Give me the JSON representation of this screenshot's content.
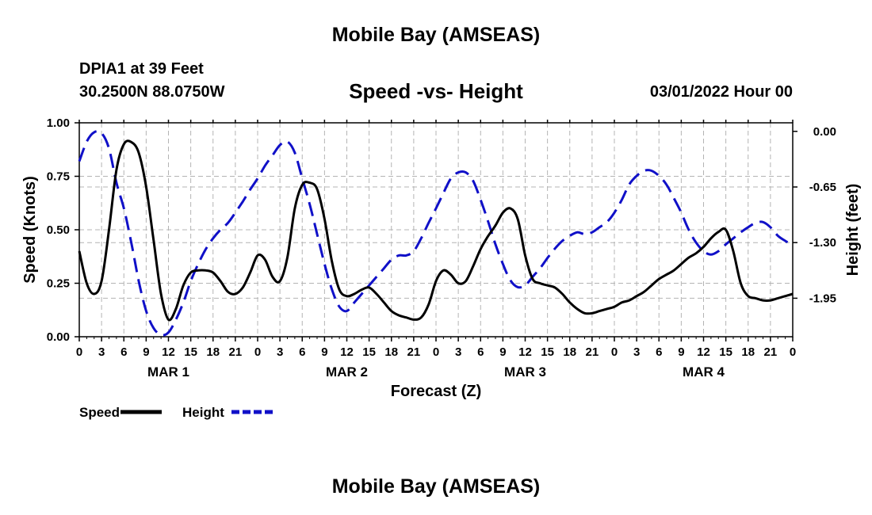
{
  "page": {
    "title": "Mobile Bay (AMSEAS)",
    "station": "DPIA1 at 39 Feet",
    "coords": "30.2500N  88.0750W",
    "plot_title": "Speed -vs- Height",
    "datetime": "03/01/2022 Hour 00",
    "bottom_title": "Mobile Bay (AMSEAS)"
  },
  "chart_data": {
    "type": "line",
    "title": "Speed -vs- Height",
    "xlabel": "Forecast (Z)",
    "ylabel": "Speed (Knots)",
    "y2label": "Height (feet)",
    "x_range_hours": [
      0,
      96
    ],
    "ylim": [
      0,
      1.0
    ],
    "y2lim": [
      -2.4,
      0.1
    ],
    "x_ticks": [
      0,
      3,
      6,
      9,
      12,
      15,
      18,
      21,
      24,
      27,
      30,
      33,
      36,
      39,
      42,
      45,
      48,
      51,
      54,
      57,
      60,
      63,
      66,
      69,
      72,
      75,
      78,
      81,
      84,
      87,
      90,
      93,
      96
    ],
    "x_tick_labels": [
      "0",
      "3",
      "6",
      "9",
      "12",
      "15",
      "18",
      "21",
      "0",
      "3",
      "6",
      "9",
      "12",
      "15",
      "18",
      "21",
      "0",
      "3",
      "6",
      "9",
      "12",
      "15",
      "18",
      "21",
      "0",
      "3",
      "6",
      "9",
      "12",
      "15",
      "18",
      "21",
      "0"
    ],
    "day_labels": [
      {
        "hour": 12,
        "label": "MAR 1"
      },
      {
        "hour": 36,
        "label": "MAR 2"
      },
      {
        "hour": 60,
        "label": "MAR 3"
      },
      {
        "hour": 84,
        "label": "MAR 4"
      }
    ],
    "y_ticks": [
      0.0,
      0.25,
      0.5,
      0.75,
      1.0
    ],
    "y_tick_labels": [
      "0.00",
      "0.25",
      "0.50",
      "0.75",
      "1.00"
    ],
    "y2_ticks": [
      0.0,
      -0.65,
      -1.3,
      -1.95
    ],
    "y2_tick_labels": [
      "0.00",
      "-0.65",
      "-1.30",
      "-1.95"
    ],
    "legend": [
      {
        "label": "Speed",
        "color": "#000000",
        "dashed": false
      },
      {
        "label": "Height",
        "color": "#1010c8",
        "dashed": true
      }
    ],
    "series": [
      {
        "name": "Speed",
        "axis": "left",
        "color": "#000000",
        "x": [
          0,
          1,
          2,
          3,
          4,
          5,
          6,
          7,
          8,
          9,
          10,
          11,
          12,
          13,
          14,
          15,
          16,
          17,
          18,
          19,
          20,
          21,
          22,
          23,
          24,
          25,
          26,
          27,
          28,
          29,
          30,
          31,
          32,
          33,
          34,
          35,
          36,
          37,
          38,
          39,
          40,
          41,
          42,
          43,
          44,
          45,
          46,
          47,
          48,
          49,
          50,
          51,
          52,
          53,
          54,
          55,
          56,
          57,
          58,
          59,
          60,
          61,
          62,
          63,
          64,
          65,
          66,
          67,
          68,
          69,
          70,
          71,
          72,
          73,
          74,
          75,
          76,
          77,
          78,
          79,
          80,
          81,
          82,
          83,
          84,
          85,
          86,
          87,
          88,
          89,
          90,
          91,
          92,
          93,
          94,
          95,
          96
        ],
        "values": [
          0.4,
          0.25,
          0.2,
          0.26,
          0.5,
          0.78,
          0.9,
          0.91,
          0.86,
          0.7,
          0.45,
          0.2,
          0.08,
          0.13,
          0.24,
          0.3,
          0.31,
          0.31,
          0.3,
          0.26,
          0.21,
          0.2,
          0.23,
          0.3,
          0.38,
          0.36,
          0.28,
          0.26,
          0.37,
          0.6,
          0.71,
          0.72,
          0.69,
          0.55,
          0.35,
          0.22,
          0.19,
          0.2,
          0.22,
          0.23,
          0.2,
          0.16,
          0.12,
          0.1,
          0.09,
          0.08,
          0.09,
          0.15,
          0.26,
          0.31,
          0.29,
          0.25,
          0.26,
          0.33,
          0.41,
          0.47,
          0.52,
          0.58,
          0.6,
          0.55,
          0.38,
          0.27,
          0.25,
          0.24,
          0.23,
          0.2,
          0.16,
          0.13,
          0.11,
          0.11,
          0.12,
          0.13,
          0.14,
          0.16,
          0.17,
          0.19,
          0.21,
          0.24,
          0.27,
          0.29,
          0.31,
          0.34,
          0.37,
          0.39,
          0.42,
          0.46,
          0.49,
          0.5,
          0.4,
          0.25,
          0.19,
          0.18,
          0.17,
          0.17,
          0.18,
          0.19,
          0.2
        ]
      },
      {
        "name": "Height",
        "axis": "right",
        "color": "#1010c8",
        "x": [
          0,
          1,
          2,
          3,
          4,
          5,
          6,
          7,
          8,
          9,
          10,
          11,
          12,
          13,
          14,
          15,
          16,
          17,
          18,
          19,
          20,
          21,
          22,
          23,
          24,
          25,
          26,
          27,
          28,
          29,
          30,
          31,
          32,
          33,
          34,
          35,
          36,
          37,
          38,
          39,
          40,
          41,
          42,
          43,
          44,
          45,
          46,
          47,
          48,
          49,
          50,
          51,
          52,
          53,
          54,
          55,
          56,
          57,
          58,
          59,
          60,
          61,
          62,
          63,
          64,
          65,
          66,
          67,
          68,
          69,
          70,
          71,
          72,
          73,
          74,
          75,
          76,
          77,
          78,
          79,
          80,
          81,
          82,
          83,
          84,
          85,
          86,
          87,
          88,
          89,
          90,
          91,
          92,
          93,
          94,
          95,
          96
        ],
        "values": [
          -0.35,
          -0.12,
          -0.01,
          -0.02,
          -0.2,
          -0.6,
          -0.9,
          -1.3,
          -1.75,
          -2.1,
          -2.3,
          -2.38,
          -2.35,
          -2.2,
          -2.0,
          -1.75,
          -1.55,
          -1.38,
          -1.25,
          -1.15,
          -1.07,
          -0.95,
          -0.82,
          -0.68,
          -0.55,
          -0.4,
          -0.28,
          -0.16,
          -0.12,
          -0.25,
          -0.55,
          -0.85,
          -1.2,
          -1.55,
          -1.85,
          -2.05,
          -2.1,
          -2.0,
          -1.9,
          -1.8,
          -1.7,
          -1.6,
          -1.5,
          -1.45,
          -1.45,
          -1.4,
          -1.25,
          -1.07,
          -0.9,
          -0.72,
          -0.55,
          -0.48,
          -0.48,
          -0.58,
          -0.8,
          -1.05,
          -1.32,
          -1.55,
          -1.74,
          -1.82,
          -1.8,
          -1.7,
          -1.6,
          -1.48,
          -1.37,
          -1.28,
          -1.22,
          -1.18,
          -1.2,
          -1.18,
          -1.12,
          -1.06,
          -0.95,
          -0.8,
          -0.62,
          -0.52,
          -0.46,
          -0.46,
          -0.52,
          -0.62,
          -0.78,
          -0.95,
          -1.15,
          -1.3,
          -1.4,
          -1.44,
          -1.4,
          -1.32,
          -1.25,
          -1.18,
          -1.12,
          -1.07,
          -1.06,
          -1.12,
          -1.22,
          -1.28,
          -1.33
        ]
      }
    ]
  }
}
